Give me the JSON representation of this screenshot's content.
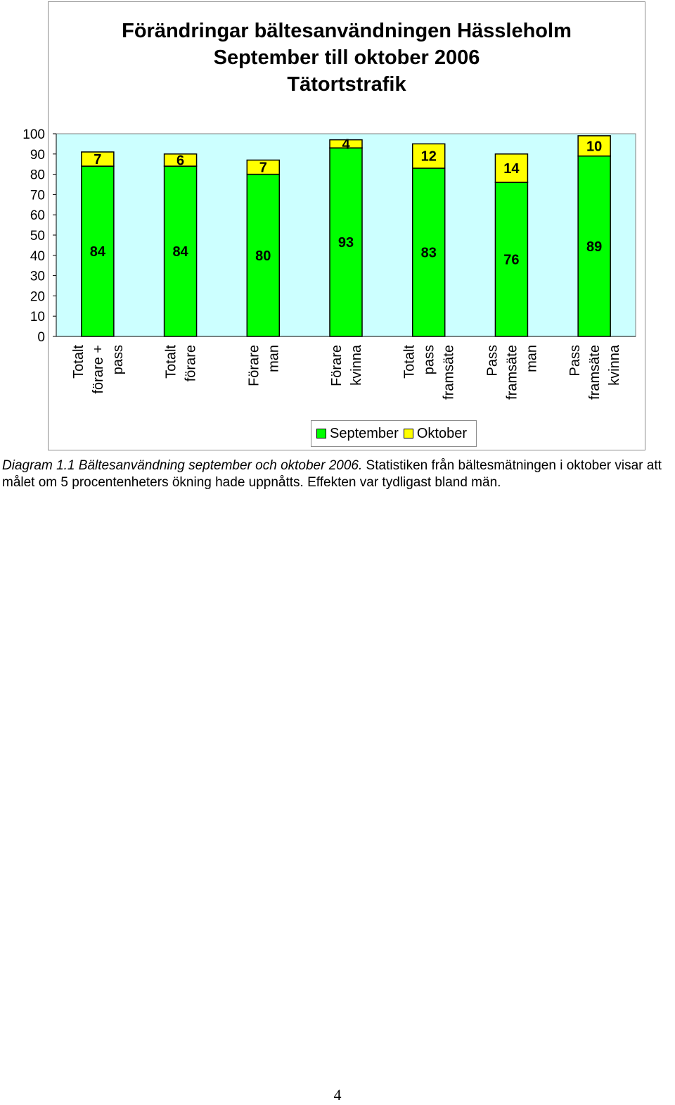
{
  "chart_data": {
    "type": "bar",
    "stacked": true,
    "title_lines": [
      "Förändringar bältesanvändningen Hässleholm",
      "September till oktober 2006",
      "Tätortstrafik"
    ],
    "categories": [
      [
        "Totalt",
        "förare +",
        "pass"
      ],
      [
        "Totalt",
        "förare"
      ],
      [
        "Förare",
        "man"
      ],
      [
        "Förare",
        "kvinna"
      ],
      [
        "Totalt",
        "pass",
        "framsäte"
      ],
      [
        "Pass",
        "framsäte",
        "man"
      ],
      [
        "Pass",
        "framsäte",
        "kvinna"
      ]
    ],
    "series": [
      {
        "name": "September",
        "color": "#00ff00",
        "values": [
          84,
          84,
          80,
          93,
          83,
          76,
          89
        ]
      },
      {
        "name": "Oktober",
        "color": "#ffff00",
        "values": [
          7,
          6,
          7,
          4,
          12,
          14,
          10
        ]
      }
    ],
    "ylim": [
      0,
      100
    ],
    "yticks": [
      0,
      10,
      20,
      30,
      40,
      50,
      60,
      70,
      80,
      90,
      100
    ],
    "plot_background": "#ccffff",
    "grid": false,
    "legend_position": "bottom",
    "xlabel": "",
    "ylabel": ""
  },
  "caption": {
    "label": "Diagram 1.1 Bältesanvändning september och oktober 2006.",
    "text": " Statistiken från bältesmätningen i oktober visar att målet om 5 procentenheters ökning hade uppnåtts. Effekten var tydligast bland män."
  },
  "page_number": "4"
}
